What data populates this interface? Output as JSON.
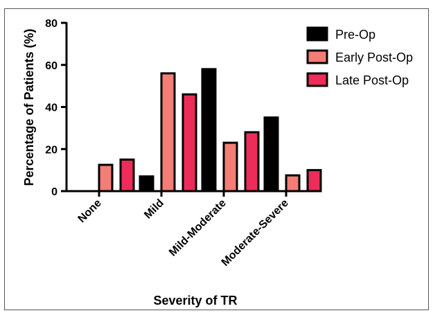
{
  "chart_data": {
    "type": "bar",
    "title": "",
    "xlabel": "Severity of TR",
    "ylabel": "Percentage of Patients (%)",
    "ylim": [
      0,
      80
    ],
    "yticks": [
      0,
      20,
      40,
      60,
      80
    ],
    "categories": [
      "None",
      "Mild",
      "Mild-Moderate",
      "Moderate-Severe"
    ],
    "series": [
      {
        "name": "Pre-Op",
        "values": [
          0,
          7,
          58,
          35
        ],
        "color": "#000000"
      },
      {
        "name": "Early Post-Op",
        "values": [
          12.5,
          56,
          23,
          7.5
        ],
        "color": "#f27e76"
      },
      {
        "name": "Late Post-Op",
        "values": [
          15,
          46,
          28,
          10
        ],
        "color": "#ec2c59"
      }
    ],
    "legend_position": "top-right",
    "grid": false
  }
}
